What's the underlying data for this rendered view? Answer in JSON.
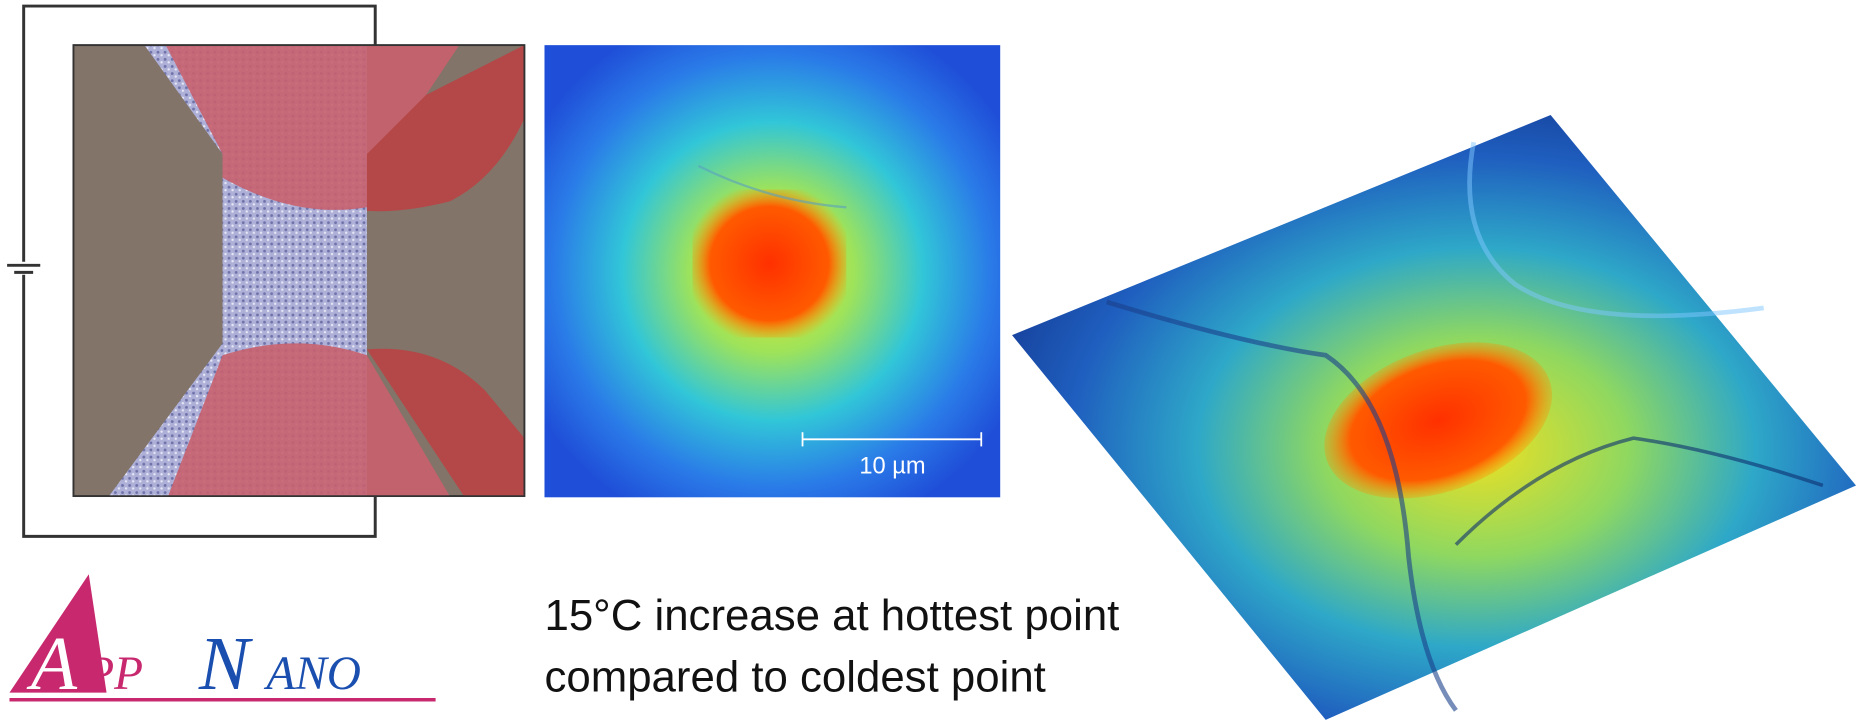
{
  "scale_bar": "10 µm",
  "caption": [
    "15°C increase at hottest point",
    "compared to coldest point"
  ],
  "logo": {
    "initial1": "A",
    "rest1": "PP",
    "initial2": "N",
    "rest2": "ANO"
  }
}
